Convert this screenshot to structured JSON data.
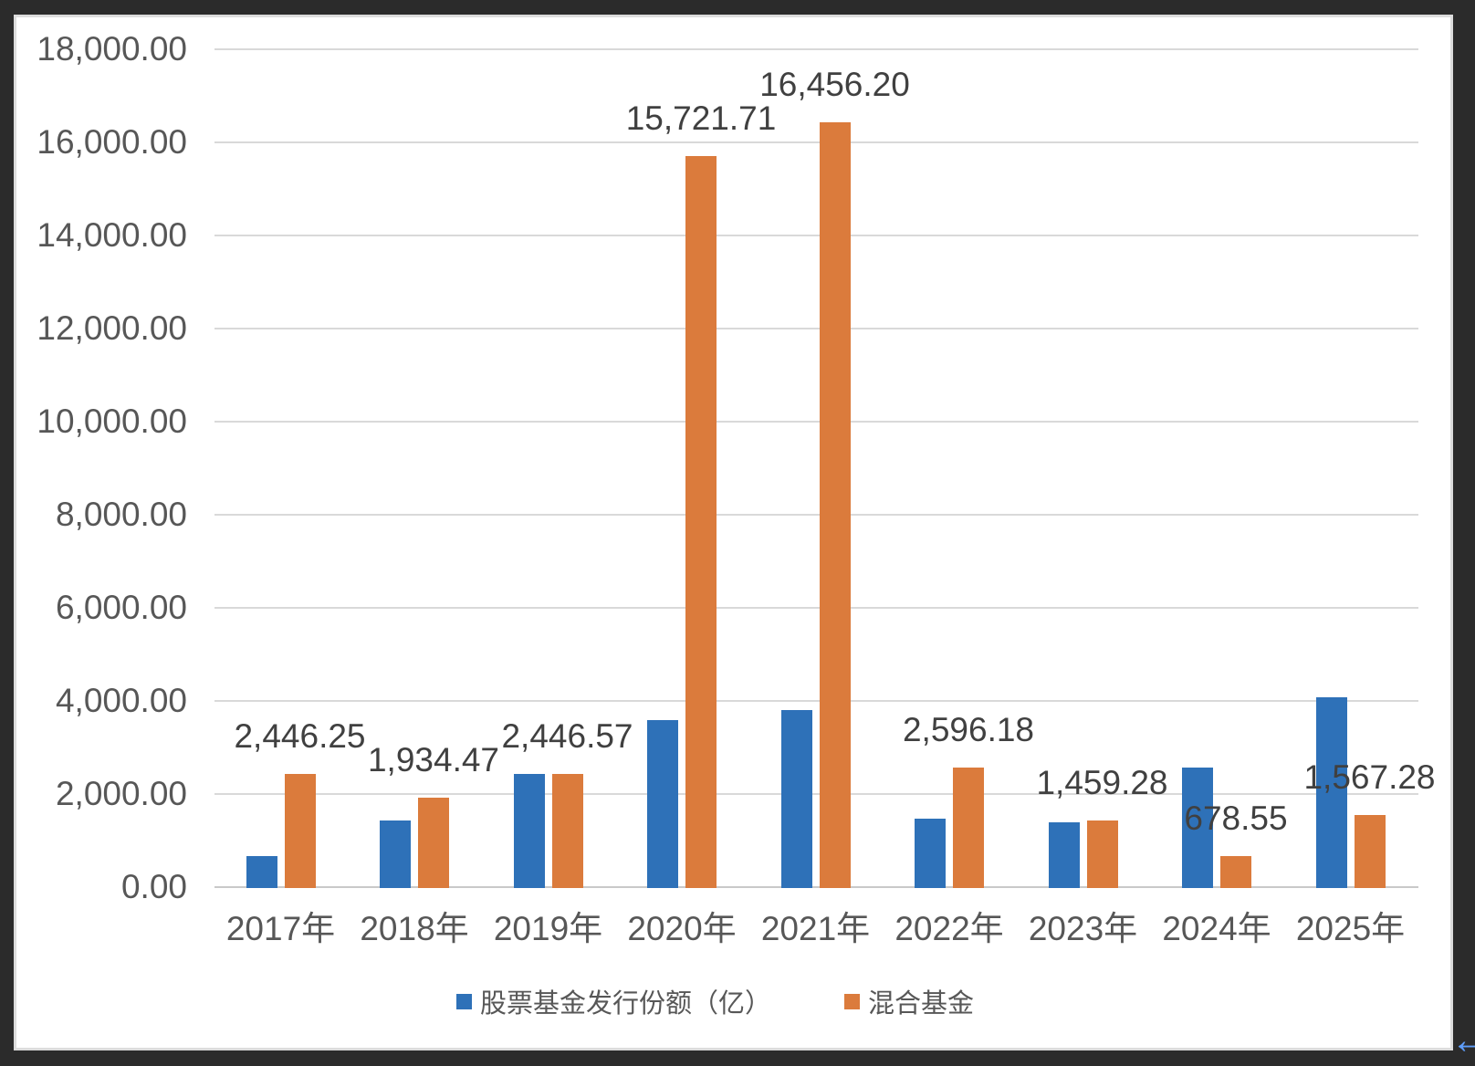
{
  "page": {
    "background": "#2b2b2b"
  },
  "card": {
    "background": "#ffffff",
    "border_color": "#dcdcdc"
  },
  "chart_data": {
    "type": "bar",
    "title": "",
    "categories": [
      "2017年",
      "2018年",
      "2019年",
      "2020年",
      "2021年",
      "2022年",
      "2023年",
      "2024年",
      "2025年"
    ],
    "series": [
      {
        "key": "stock",
        "name": "股票基金发行份额（亿）",
        "color": "#2E71B8",
        "values": [
          690,
          1455,
          2445,
          3600,
          3820,
          1490,
          1410,
          2590,
          4100
        ],
        "estimated": true,
        "data_labels": null
      },
      {
        "key": "hybrid",
        "name": "混合基金",
        "color": "#DB7B3C",
        "values": [
          2446.25,
          1934.47,
          2446.57,
          15721.71,
          16456.2,
          2596.18,
          1459.28,
          678.55,
          1567.28
        ],
        "estimated": false,
        "data_labels": [
          "2,446.25",
          "1,934.47",
          "2,446.57",
          "15,721.71",
          "16,456.20",
          "2,596.18",
          "1,459.28",
          "678.55",
          "1,567.28"
        ]
      }
    ],
    "ylim": [
      0,
      18000
    ],
    "ytick_step": 2000,
    "ytick_labels": [
      "0.00",
      "2,000.00",
      "4,000.00",
      "6,000.00",
      "8,000.00",
      "10,000.00",
      "12,000.00",
      "14,000.00",
      "16,000.00",
      "18,000.00"
    ],
    "grid": true,
    "legend_position": "bottom",
    "axis_text_color": "#575757",
    "data_label_color": "#404040",
    "gridline_color": "#D9D9D9"
  },
  "misc": {
    "back_arrow_glyph": "←",
    "back_arrow_color": "#5E9CF7"
  }
}
